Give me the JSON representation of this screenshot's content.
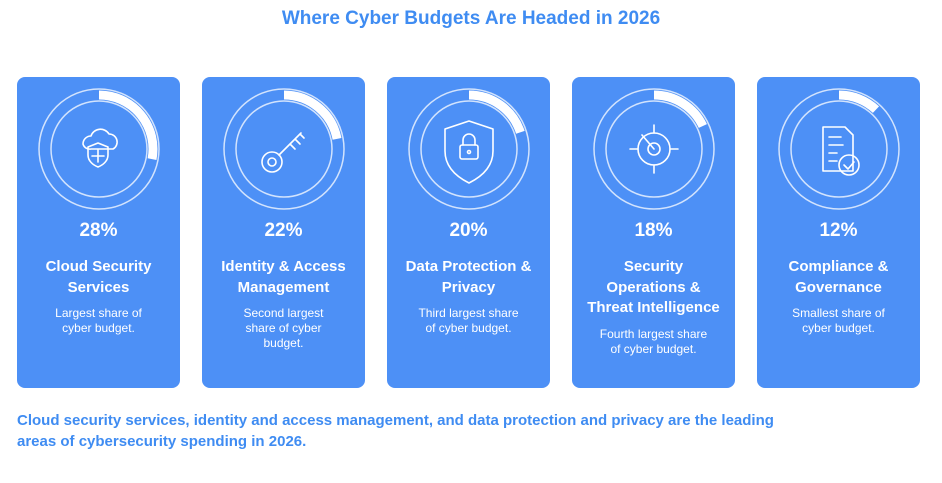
{
  "title": "Where Cyber Budgets Are Headed in 2026",
  "cards": [
    {
      "value": 28,
      "value_label": "28%",
      "label": "Cloud Security Services",
      "description": "Largest share of cyber budget."
    },
    {
      "value": 22,
      "value_label": "22%",
      "label": "Identity & Access Management",
      "description": "Second largest share of cyber budget."
    },
    {
      "value": 20,
      "value_label": "20%",
      "label": "Data Protection & Privacy",
      "description": "Third largest share of cyber budget."
    },
    {
      "value": 18,
      "value_label": "18%",
      "label": "Security Operations & Threat Intelligence",
      "description": "Fourth largest share of cyber budget."
    },
    {
      "value": 12,
      "value_label": "12%",
      "label": "Compliance & Governance",
      "description": "Smallest share of cyber budget."
    }
  ],
  "footer": "Cloud security services, identity and access management, and data protection and privacy are the leading areas of cybersecurity spending in 2026."
}
